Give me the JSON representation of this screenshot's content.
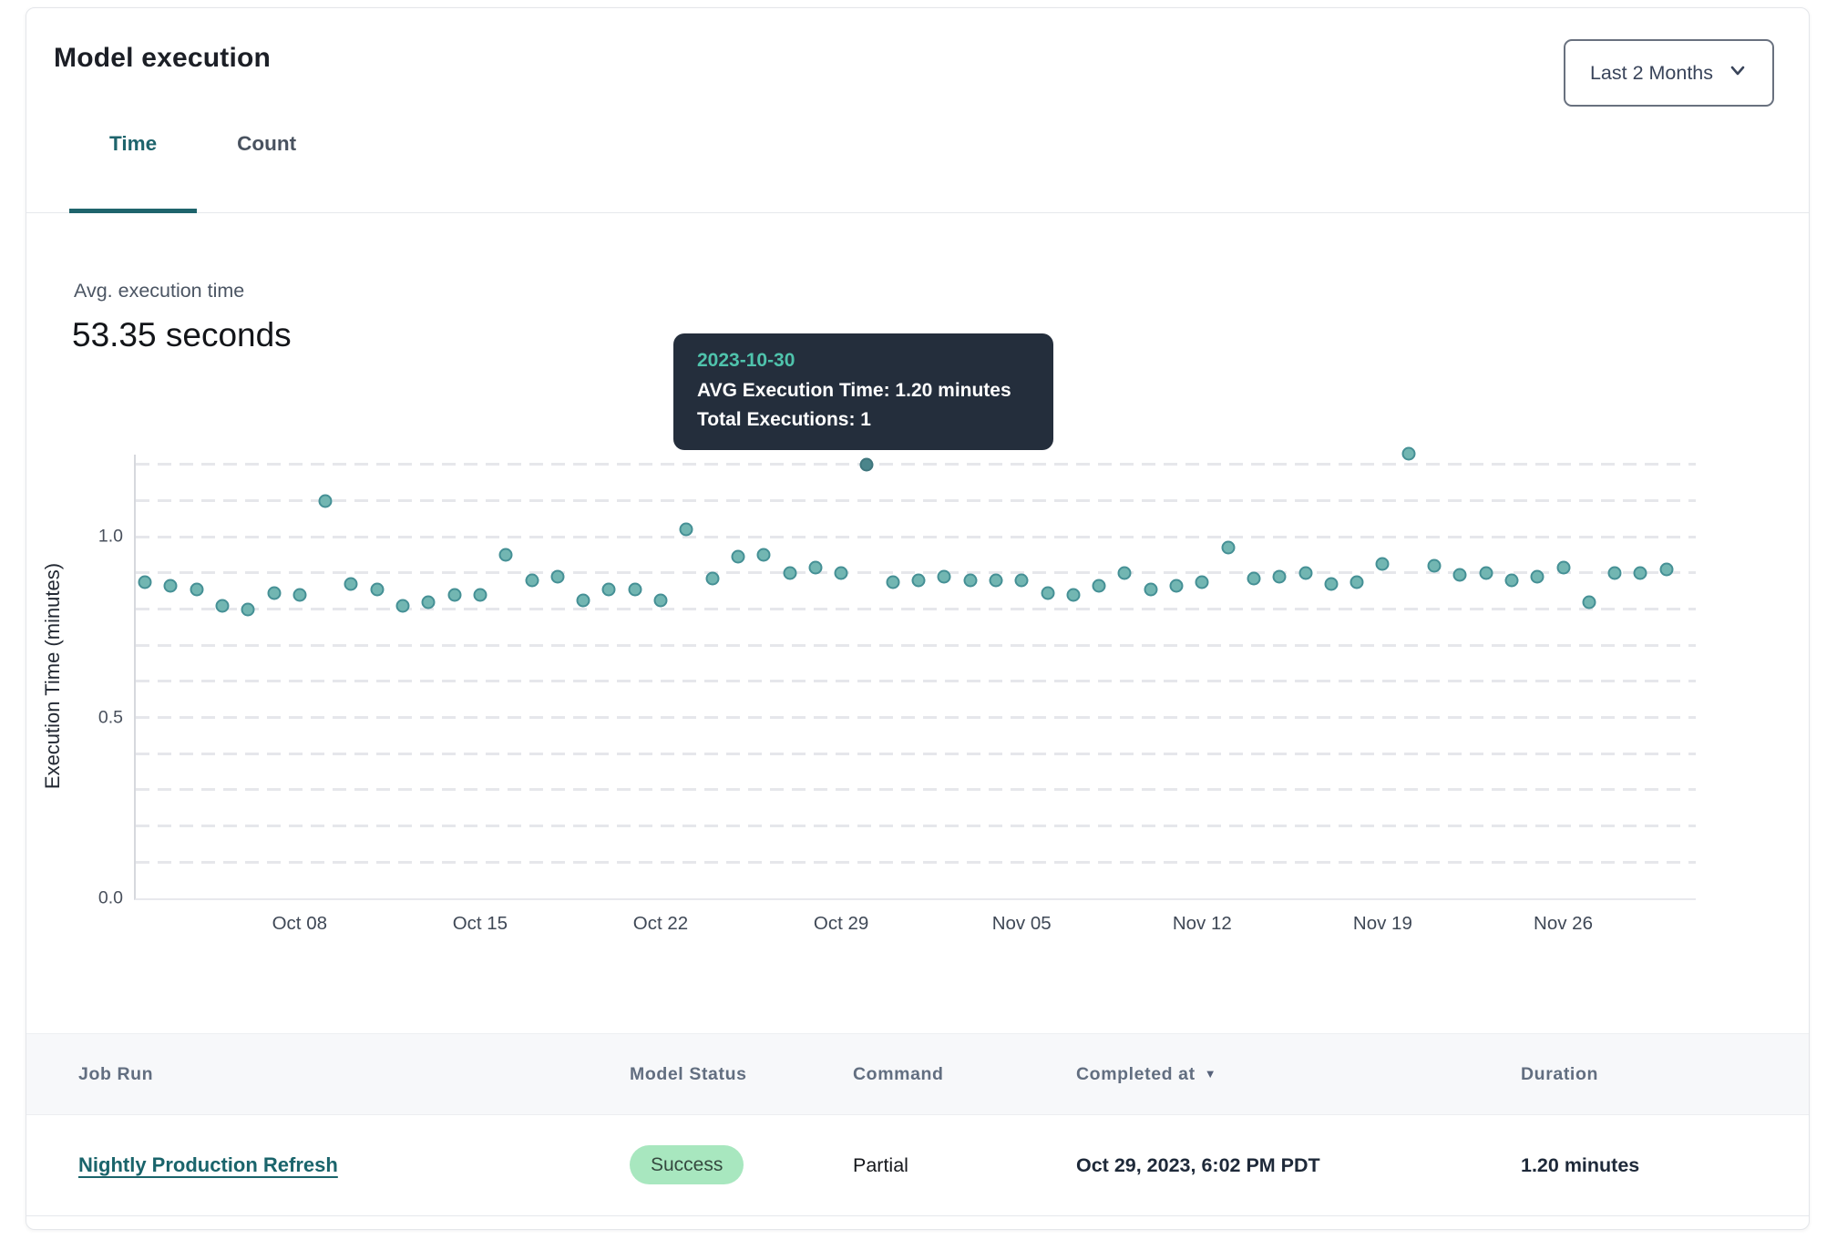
{
  "header": {
    "title": "Model execution",
    "range_selector": {
      "label": "Last 2 Months"
    }
  },
  "tabs": [
    {
      "label": "Time",
      "active": true
    },
    {
      "label": "Count",
      "active": false
    }
  ],
  "summary": {
    "label": "Avg. execution time",
    "value": "53.35 seconds"
  },
  "tooltip": {
    "date": "2023-10-30",
    "line1": "AVG Execution Time: 1.20 minutes",
    "line2": "Total Executions: 1"
  },
  "chart_data": {
    "type": "scatter",
    "title": "",
    "xlabel": "",
    "ylabel": "Execution Time (minutes)",
    "ylim": [
      0,
      1.25
    ],
    "yticks": [
      "0.0",
      "0.5",
      "1.0"
    ],
    "ytick_values": [
      0,
      0.5,
      1.0
    ],
    "grid": "horizontal dashed every 0.1",
    "gridline_step": 0.1,
    "legend": "none",
    "selected_date": "2023-10-30",
    "x_tick_labels": [
      {
        "label": "Oct 08",
        "day_index": 6
      },
      {
        "label": "Oct 15",
        "day_index": 13
      },
      {
        "label": "Oct 22",
        "day_index": 20
      },
      {
        "label": "Oct 29",
        "day_index": 27
      },
      {
        "label": "Nov 05",
        "day_index": 34
      },
      {
        "label": "Nov 12",
        "day_index": 41
      },
      {
        "label": "Nov 19",
        "day_index": 48
      },
      {
        "label": "Nov 26",
        "day_index": 55
      }
    ],
    "points": [
      {
        "date": "2023-10-02",
        "avg_execution_minutes": 0.875
      },
      {
        "date": "2023-10-03",
        "avg_execution_minutes": 0.865
      },
      {
        "date": "2023-10-04",
        "avg_execution_minutes": 0.855
      },
      {
        "date": "2023-10-05",
        "avg_execution_minutes": 0.81
      },
      {
        "date": "2023-10-06",
        "avg_execution_minutes": 0.8
      },
      {
        "date": "2023-10-07",
        "avg_execution_minutes": 0.845
      },
      {
        "date": "2023-10-08",
        "avg_execution_minutes": 0.84
      },
      {
        "date": "2023-10-09",
        "avg_execution_minutes": 1.1
      },
      {
        "date": "2023-10-10",
        "avg_execution_minutes": 0.87
      },
      {
        "date": "2023-10-11",
        "avg_execution_minutes": 0.855
      },
      {
        "date": "2023-10-12",
        "avg_execution_minutes": 0.81
      },
      {
        "date": "2023-10-13",
        "avg_execution_minutes": 0.82
      },
      {
        "date": "2023-10-14",
        "avg_execution_minutes": 0.84
      },
      {
        "date": "2023-10-15",
        "avg_execution_minutes": 0.84
      },
      {
        "date": "2023-10-16",
        "avg_execution_minutes": 0.95
      },
      {
        "date": "2023-10-17",
        "avg_execution_minutes": 0.88
      },
      {
        "date": "2023-10-18",
        "avg_execution_minutes": 0.89
      },
      {
        "date": "2023-10-19",
        "avg_execution_minutes": 0.825
      },
      {
        "date": "2023-10-20",
        "avg_execution_minutes": 0.855
      },
      {
        "date": "2023-10-21",
        "avg_execution_minutes": 0.855
      },
      {
        "date": "2023-10-22",
        "avg_execution_minutes": 0.825
      },
      {
        "date": "2023-10-23",
        "avg_execution_minutes": 1.02
      },
      {
        "date": "2023-10-24",
        "avg_execution_minutes": 0.885
      },
      {
        "date": "2023-10-25",
        "avg_execution_minutes": 0.945
      },
      {
        "date": "2023-10-26",
        "avg_execution_minutes": 0.95
      },
      {
        "date": "2023-10-27",
        "avg_execution_minutes": 0.9
      },
      {
        "date": "2023-10-28",
        "avg_execution_minutes": 0.915
      },
      {
        "date": "2023-10-29",
        "avg_execution_minutes": 0.9
      },
      {
        "date": "2023-10-30",
        "avg_execution_minutes": 1.2,
        "selected": true,
        "total_executions": 1
      },
      {
        "date": "2023-10-31",
        "avg_execution_minutes": 0.875
      },
      {
        "date": "2023-11-01",
        "avg_execution_minutes": 0.88
      },
      {
        "date": "2023-11-02",
        "avg_execution_minutes": 0.89
      },
      {
        "date": "2023-11-03",
        "avg_execution_minutes": 0.88
      },
      {
        "date": "2023-11-04",
        "avg_execution_minutes": 0.88
      },
      {
        "date": "2023-11-05",
        "avg_execution_minutes": 0.88
      },
      {
        "date": "2023-11-06",
        "avg_execution_minutes": 0.845
      },
      {
        "date": "2023-11-07",
        "avg_execution_minutes": 0.84
      },
      {
        "date": "2023-11-08",
        "avg_execution_minutes": 0.865
      },
      {
        "date": "2023-11-09",
        "avg_execution_minutes": 0.9
      },
      {
        "date": "2023-11-10",
        "avg_execution_minutes": 0.855
      },
      {
        "date": "2023-11-11",
        "avg_execution_minutes": 0.865
      },
      {
        "date": "2023-11-12",
        "avg_execution_minutes": 0.875
      },
      {
        "date": "2023-11-13",
        "avg_execution_minutes": 0.97
      },
      {
        "date": "2023-11-14",
        "avg_execution_minutes": 0.885
      },
      {
        "date": "2023-11-15",
        "avg_execution_minutes": 0.89
      },
      {
        "date": "2023-11-16",
        "avg_execution_minutes": 0.9
      },
      {
        "date": "2023-11-17",
        "avg_execution_minutes": 0.87
      },
      {
        "date": "2023-11-18",
        "avg_execution_minutes": 0.875
      },
      {
        "date": "2023-11-19",
        "avg_execution_minutes": 0.925
      },
      {
        "date": "2023-11-20",
        "avg_execution_minutes": 1.23
      },
      {
        "date": "2023-11-21",
        "avg_execution_minutes": 0.92
      },
      {
        "date": "2023-11-22",
        "avg_execution_minutes": 0.895
      },
      {
        "date": "2023-11-23",
        "avg_execution_minutes": 0.9
      },
      {
        "date": "2023-11-24",
        "avg_execution_minutes": 0.88
      },
      {
        "date": "2023-11-25",
        "avg_execution_minutes": 0.89
      },
      {
        "date": "2023-11-26",
        "avg_execution_minutes": 0.915
      },
      {
        "date": "2023-11-27",
        "avg_execution_minutes": 0.82
      },
      {
        "date": "2023-11-28",
        "avg_execution_minutes": 0.9
      },
      {
        "date": "2023-11-29",
        "avg_execution_minutes": 0.9
      },
      {
        "date": "2023-11-30",
        "avg_execution_minutes": 0.91
      }
    ]
  },
  "table": {
    "columns": [
      {
        "label": "Job Run"
      },
      {
        "label": "Model Status"
      },
      {
        "label": "Command"
      },
      {
        "label": "Completed at",
        "sorted": "desc",
        "sort_icon": "▼"
      },
      {
        "label": "Duration"
      }
    ],
    "rows": [
      {
        "job_run": "Nightly Production Refresh",
        "model_status": "Success",
        "command": "Partial",
        "completed_at": "Oct 29, 2023, 6:02 PM PDT",
        "duration": "1.20 minutes"
      }
    ]
  },
  "colors": {
    "accent_teal": "#1e646c",
    "dot_fill": "#72b6b2",
    "dot_stroke": "#459095",
    "dot_selected": "#4b858b",
    "tooltip_bg": "#242e3c",
    "tooltip_date": "#4fc3ac",
    "badge_bg": "#a8e7bf",
    "badge_text": "#35493f",
    "link": "#1a646b"
  }
}
